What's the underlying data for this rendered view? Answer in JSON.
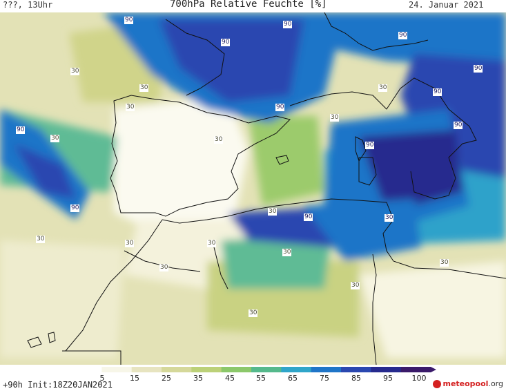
{
  "header": {
    "left": "???, 13Uhr",
    "title": "700hPa Relative Feuchte [%]",
    "date": "24. Januar 2021"
  },
  "footer": {
    "left": "+90h Init:18Z20JAN2021",
    "logo_main": "meteopool",
    "logo_suffix": ".org"
  },
  "scale": {
    "ticks": [
      "5",
      "15",
      "25",
      "35",
      "45",
      "55",
      "65",
      "75",
      "85",
      "95",
      "100"
    ],
    "colors": [
      "#ffffff",
      "#f7f6e8",
      "#e7e4c0",
      "#d5d89a",
      "#bcd178",
      "#8cc86a",
      "#55b98c",
      "#2fa5c9",
      "#1f75c8",
      "#2a47b0",
      "#262a8e",
      "#3a1a6a"
    ]
  },
  "contour_labels": [
    {
      "text": "90"
    },
    {
      "text": "90"
    },
    {
      "text": "90"
    },
    {
      "text": "90"
    },
    {
      "text": "90"
    },
    {
      "text": "90"
    },
    {
      "text": "90"
    },
    {
      "text": "90"
    },
    {
      "text": "90"
    },
    {
      "text": "90"
    },
    {
      "text": "90"
    },
    {
      "text": "90"
    },
    {
      "text": "30"
    },
    {
      "text": "30"
    },
    {
      "text": "30"
    },
    {
      "text": "30"
    },
    {
      "text": "30"
    },
    {
      "text": "30"
    },
    {
      "text": "30"
    },
    {
      "text": "30"
    },
    {
      "text": "30"
    },
    {
      "text": "30"
    },
    {
      "text": "30"
    },
    {
      "text": "30"
    },
    {
      "text": "30"
    },
    {
      "text": "30"
    },
    {
      "text": "30"
    },
    {
      "text": "30"
    },
    {
      "text": "30"
    }
  ]
}
